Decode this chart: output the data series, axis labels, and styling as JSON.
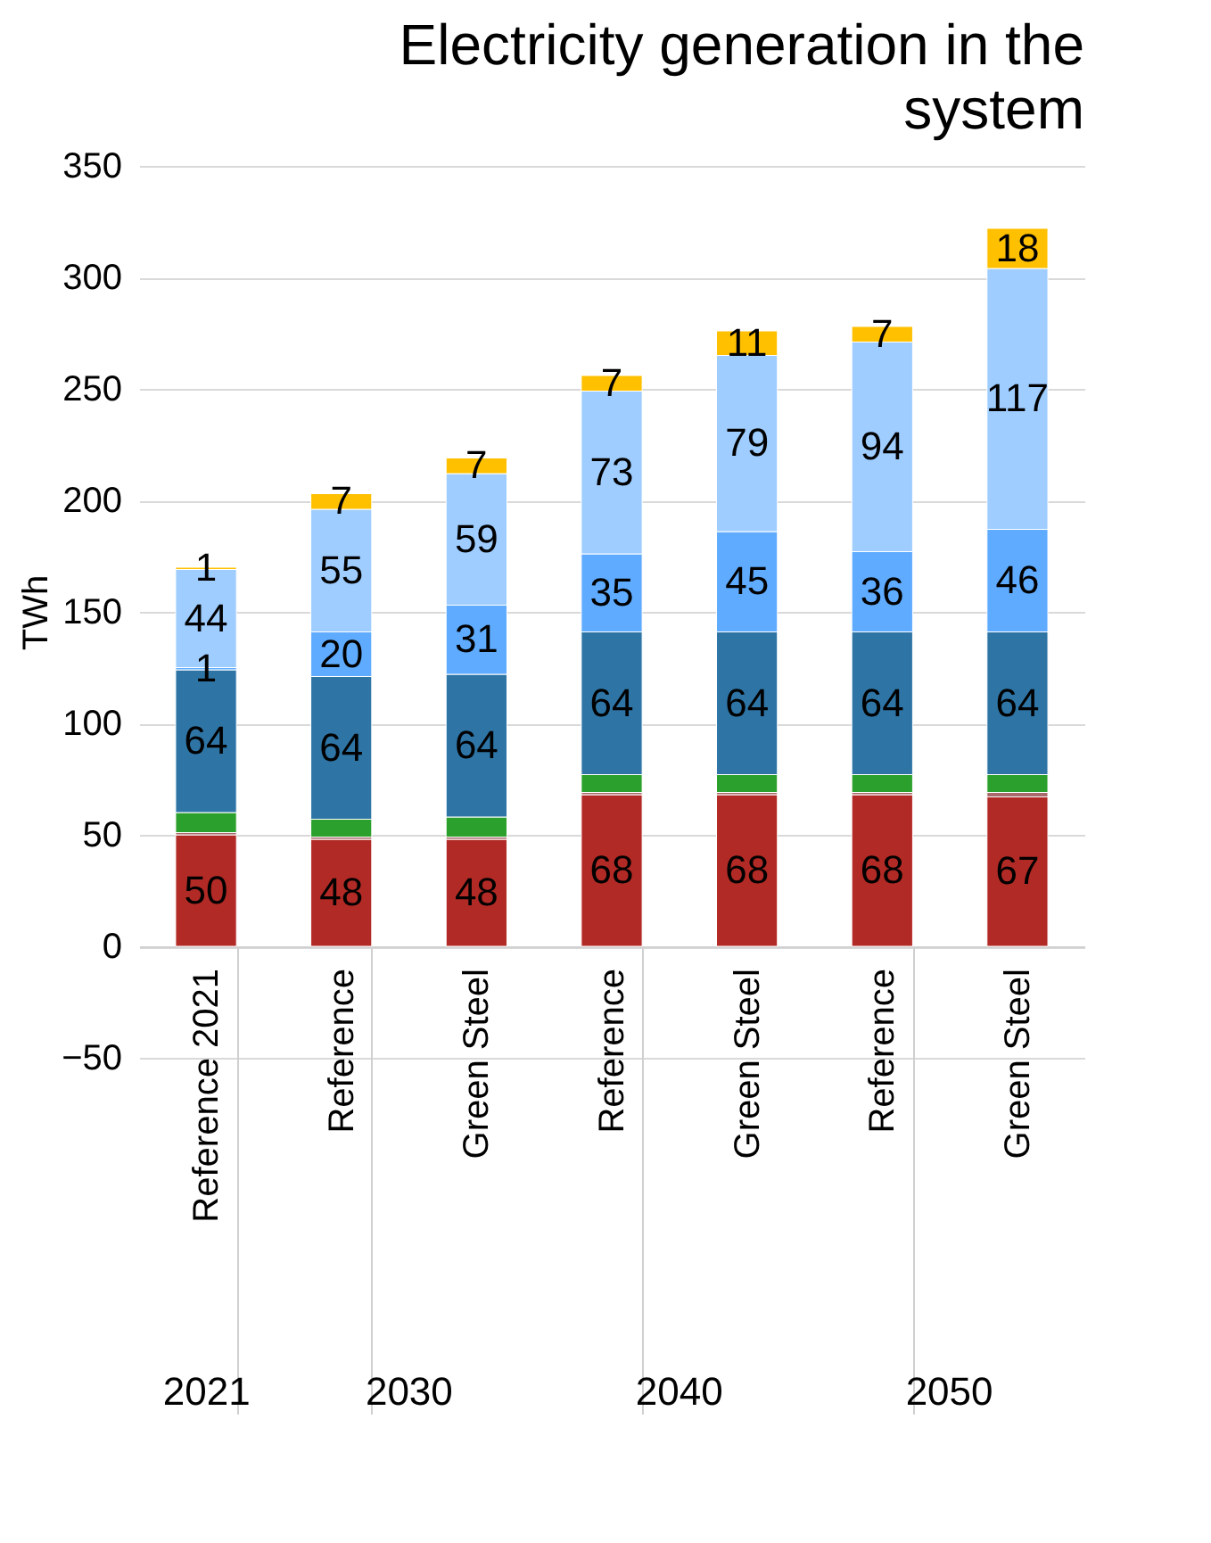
{
  "chart_data": {
    "type": "bar",
    "title": "Electricity generation in the system",
    "ylabel": "TWh",
    "stacked": true,
    "grid": "y",
    "categories": [
      "Reference 2021",
      "Reference",
      "Green Steel",
      "Reference",
      "Green Steel",
      "Reference",
      "Green Steel"
    ],
    "annotations": [
      "2021",
      "2030",
      "2040",
      "2050"
    ],
    "ylim": [
      -50,
      350
    ],
    "yticks": [
      -50,
      0,
      50,
      100,
      150,
      200,
      250,
      300,
      350
    ],
    "series": [
      {
        "color": "#b22a25",
        "values": [
          50,
          48,
          48,
          68,
          68,
          68,
          67
        ],
        "value_labels": [
          "50",
          "48",
          "48",
          "68",
          "68",
          "68",
          "67"
        ]
      },
      {
        "color": "#a86a6a",
        "values": [
          1,
          1,
          1,
          1,
          1,
          1,
          2
        ]
      },
      {
        "color": "#2ca02c",
        "values": [
          9,
          8,
          9,
          8,
          8,
          8,
          8
        ]
      },
      {
        "color": "#2e75a6",
        "values": [
          64,
          64,
          64,
          64,
          64,
          64,
          64
        ],
        "value_labels": [
          "64",
          "64",
          "64",
          "64",
          "64",
          "64",
          "64"
        ]
      },
      {
        "color": "#5fabff",
        "values": [
          1,
          20,
          31,
          35,
          45,
          36,
          46
        ],
        "value_labels": [
          "1",
          "20",
          "31",
          "35",
          "45",
          "36",
          "46"
        ]
      },
      {
        "color": "#9fcdff",
        "values": [
          44,
          55,
          59,
          73,
          79,
          94,
          117
        ],
        "value_labels": [
          "44",
          "55",
          "59",
          "73",
          "79",
          "94",
          "117"
        ]
      },
      {
        "color": "#ffc000",
        "values": [
          1,
          7,
          7,
          7,
          11,
          7,
          18
        ],
        "value_labels": [
          "1",
          "7",
          "7",
          "7",
          "11",
          "7",
          "18"
        ]
      }
    ]
  }
}
